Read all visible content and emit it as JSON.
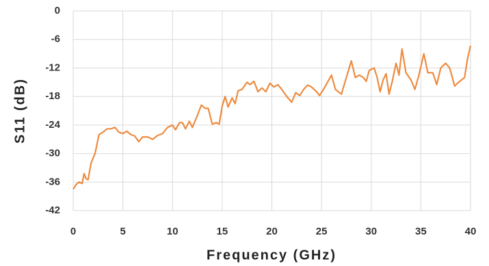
{
  "chart_data": {
    "type": "line",
    "x_label": "Frequency (GHz)",
    "y_label": "S11 (dB)",
    "x": [
      0,
      0.3,
      0.6,
      0.9,
      1.1,
      1.3,
      1.5,
      1.8,
      2.2,
      2.6,
      3.0,
      3.4,
      3.8,
      4.2,
      4.6,
      5.0,
      5.4,
      5.8,
      6.2,
      6.6,
      7.0,
      7.5,
      8.0,
      8.5,
      9.0,
      9.5,
      10.0,
      10.3,
      10.7,
      11.0,
      11.3,
      11.7,
      12.0,
      12.5,
      12.9,
      13.3,
      13.6,
      14.0,
      14.4,
      14.7,
      15.0,
      15.3,
      15.6,
      16.0,
      16.3,
      16.6,
      17.0,
      17.5,
      17.8,
      18.2,
      18.6,
      19.0,
      19.4,
      19.8,
      20.2,
      20.6,
      21.0,
      21.5,
      22.0,
      22.4,
      22.8,
      23.2,
      23.6,
      24.0,
      24.5,
      24.8,
      25.2,
      25.6,
      26.0,
      26.4,
      27.0,
      27.5,
      28.0,
      28.4,
      28.8,
      29.2,
      29.5,
      29.8,
      30.3,
      30.6,
      30.9,
      31.2,
      31.5,
      31.8,
      32.1,
      32.5,
      32.8,
      33.1,
      33.5,
      34.0,
      34.4,
      34.8,
      35.3,
      35.7,
      36.2,
      36.6,
      37.0,
      37.5,
      37.9,
      38.4,
      38.8,
      39.4,
      39.7,
      40.0
    ],
    "series": [
      {
        "name": "S11",
        "color": "#ed8b3f",
        "values": [
          -37.5,
          -36.5,
          -36,
          -36.3,
          -34.2,
          -35.3,
          -35.5,
          -32,
          -30,
          -26,
          -25.5,
          -24.8,
          -24.8,
          -24.5,
          -25.5,
          -25.8,
          -25.3,
          -26,
          -26.3,
          -27.5,
          -26.5,
          -26.5,
          -27,
          -26.2,
          -25.8,
          -24.5,
          -24,
          -25,
          -23.5,
          -23.5,
          -24.8,
          -23.2,
          -24.5,
          -22,
          -19.8,
          -20.5,
          -20.5,
          -23.8,
          -23.5,
          -23.8,
          -20,
          -18,
          -20.2,
          -18.3,
          -19.5,
          -16.8,
          -16.5,
          -15,
          -15.5,
          -14.8,
          -17,
          -16.2,
          -17,
          -15.2,
          -16,
          -15.5,
          -16.5,
          -18,
          -19.2,
          -17.2,
          -17.8,
          -16.5,
          -15.6,
          -16,
          -17,
          -17.8,
          -16.5,
          -15,
          -13.5,
          -16.5,
          -17.5,
          -14,
          -10.5,
          -14,
          -13.5,
          -14,
          -14.8,
          -12.5,
          -12,
          -14,
          -17,
          -14.5,
          -13.2,
          -17.5,
          -15,
          -11,
          -13.5,
          -8,
          -13,
          -14.5,
          -16.5,
          -13.5,
          -9,
          -13,
          -13,
          -15.5,
          -12,
          -11,
          -12,
          -15.8,
          -15,
          -14,
          -10,
          -7.3
        ]
      }
    ],
    "xlim": [
      0,
      40
    ],
    "xticks": [
      0,
      5,
      10,
      15,
      20,
      25,
      30,
      35,
      40
    ],
    "ylim": [
      -42,
      0
    ],
    "yticks": [
      0,
      -6,
      -12,
      -18,
      -24,
      -30,
      -36,
      -42
    ],
    "grid": true
  }
}
